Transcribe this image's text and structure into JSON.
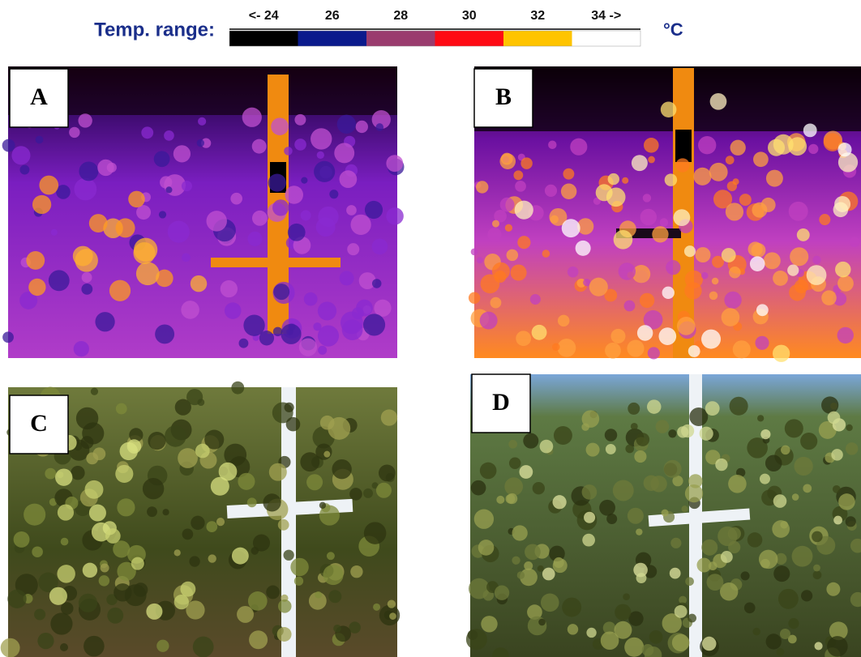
{
  "legend": {
    "title": "Temp. range:",
    "unit": "°C",
    "segments": [
      {
        "label": "<- 24",
        "color": "#000000"
      },
      {
        "label": "26",
        "color": "#0a1a8c"
      },
      {
        "label": "28",
        "color": "#9a3c6e"
      },
      {
        "label": "30",
        "color": "#ff0a14"
      },
      {
        "label": "32",
        "color": "#ffc400"
      },
      {
        "label": "34 ->",
        "color": "#ffffff"
      }
    ]
  },
  "panels": [
    {
      "label": "A"
    },
    {
      "label": "B"
    },
    {
      "label": "C"
    },
    {
      "label": "D"
    }
  ]
}
